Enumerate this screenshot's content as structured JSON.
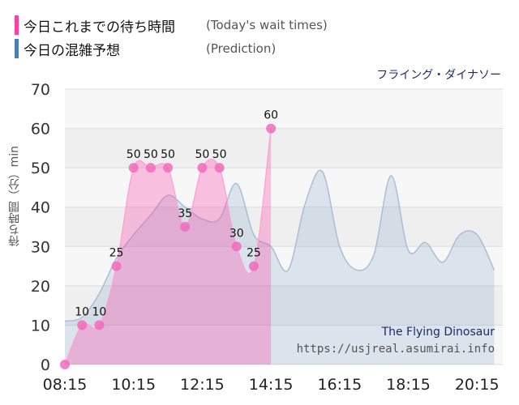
{
  "legend": {
    "today": {
      "label_jp": "今日これまでの待ち時間",
      "label_en": "(Today's wait times)",
      "color": "#ff3fa4"
    },
    "prediction": {
      "label_jp": "今日の混雑予想",
      "label_en": "(Prediction)",
      "color": "#4a7fb5"
    }
  },
  "ride_name": "フライング・ダイナソー",
  "credit": {
    "name": "The Flying Dinosaur",
    "url": "https://usjreal.asumirai.info"
  },
  "chart_data": {
    "type": "area",
    "ylabel": "待ち時間（分）min",
    "ylim": [
      0,
      70
    ],
    "yticks": [
      0,
      10,
      20,
      30,
      40,
      50,
      60,
      70
    ],
    "xlim": [
      "08:15",
      "21:00"
    ],
    "xticks": [
      "08:15",
      "10:15",
      "12:15",
      "14:15",
      "16:15",
      "18:15",
      "20:15"
    ],
    "grid": true,
    "series": [
      {
        "name": "今日これまでの待ち時間",
        "color": "#ff3fa4",
        "points": [
          {
            "x": "08:15",
            "y": 0
          },
          {
            "x": "08:45",
            "y": 10
          },
          {
            "x": "09:15",
            "y": 10
          },
          {
            "x": "09:45",
            "y": 25
          },
          {
            "x": "10:15",
            "y": 50
          },
          {
            "x": "10:45",
            "y": 50
          },
          {
            "x": "11:15",
            "y": 50
          },
          {
            "x": "11:45",
            "y": 35
          },
          {
            "x": "12:15",
            "y": 50
          },
          {
            "x": "12:45",
            "y": 50
          },
          {
            "x": "13:15",
            "y": 30
          },
          {
            "x": "13:45",
            "y": 25
          },
          {
            "x": "14:15",
            "y": 60
          }
        ],
        "labels": [
          "",
          "10",
          "10",
          "25",
          "50",
          "50",
          "50",
          "35",
          "50",
          "50",
          "30",
          "25",
          "60"
        ]
      },
      {
        "name": "今日の混雑予想",
        "color": "#4a7fb5",
        "points": [
          {
            "x": "08:15",
            "y": 11
          },
          {
            "x": "08:45",
            "y": 12
          },
          {
            "x": "09:15",
            "y": 18
          },
          {
            "x": "09:45",
            "y": 27
          },
          {
            "x": "10:15",
            "y": 33
          },
          {
            "x": "10:45",
            "y": 38
          },
          {
            "x": "11:15",
            "y": 43
          },
          {
            "x": "11:45",
            "y": 40
          },
          {
            "x": "12:15",
            "y": 37
          },
          {
            "x": "12:45",
            "y": 37
          },
          {
            "x": "13:15",
            "y": 46
          },
          {
            "x": "13:45",
            "y": 33
          },
          {
            "x": "14:15",
            "y": 30
          },
          {
            "x": "14:45",
            "y": 24
          },
          {
            "x": "15:15",
            "y": 41
          },
          {
            "x": "15:45",
            "y": 49
          },
          {
            "x": "16:15",
            "y": 30
          },
          {
            "x": "16:45",
            "y": 24
          },
          {
            "x": "17:15",
            "y": 28
          },
          {
            "x": "17:45",
            "y": 48
          },
          {
            "x": "18:15",
            "y": 29
          },
          {
            "x": "18:45",
            "y": 31
          },
          {
            "x": "19:15",
            "y": 26
          },
          {
            "x": "19:45",
            "y": 33
          },
          {
            "x": "20:15",
            "y": 33
          },
          {
            "x": "20:45",
            "y": 24
          }
        ]
      }
    ]
  }
}
